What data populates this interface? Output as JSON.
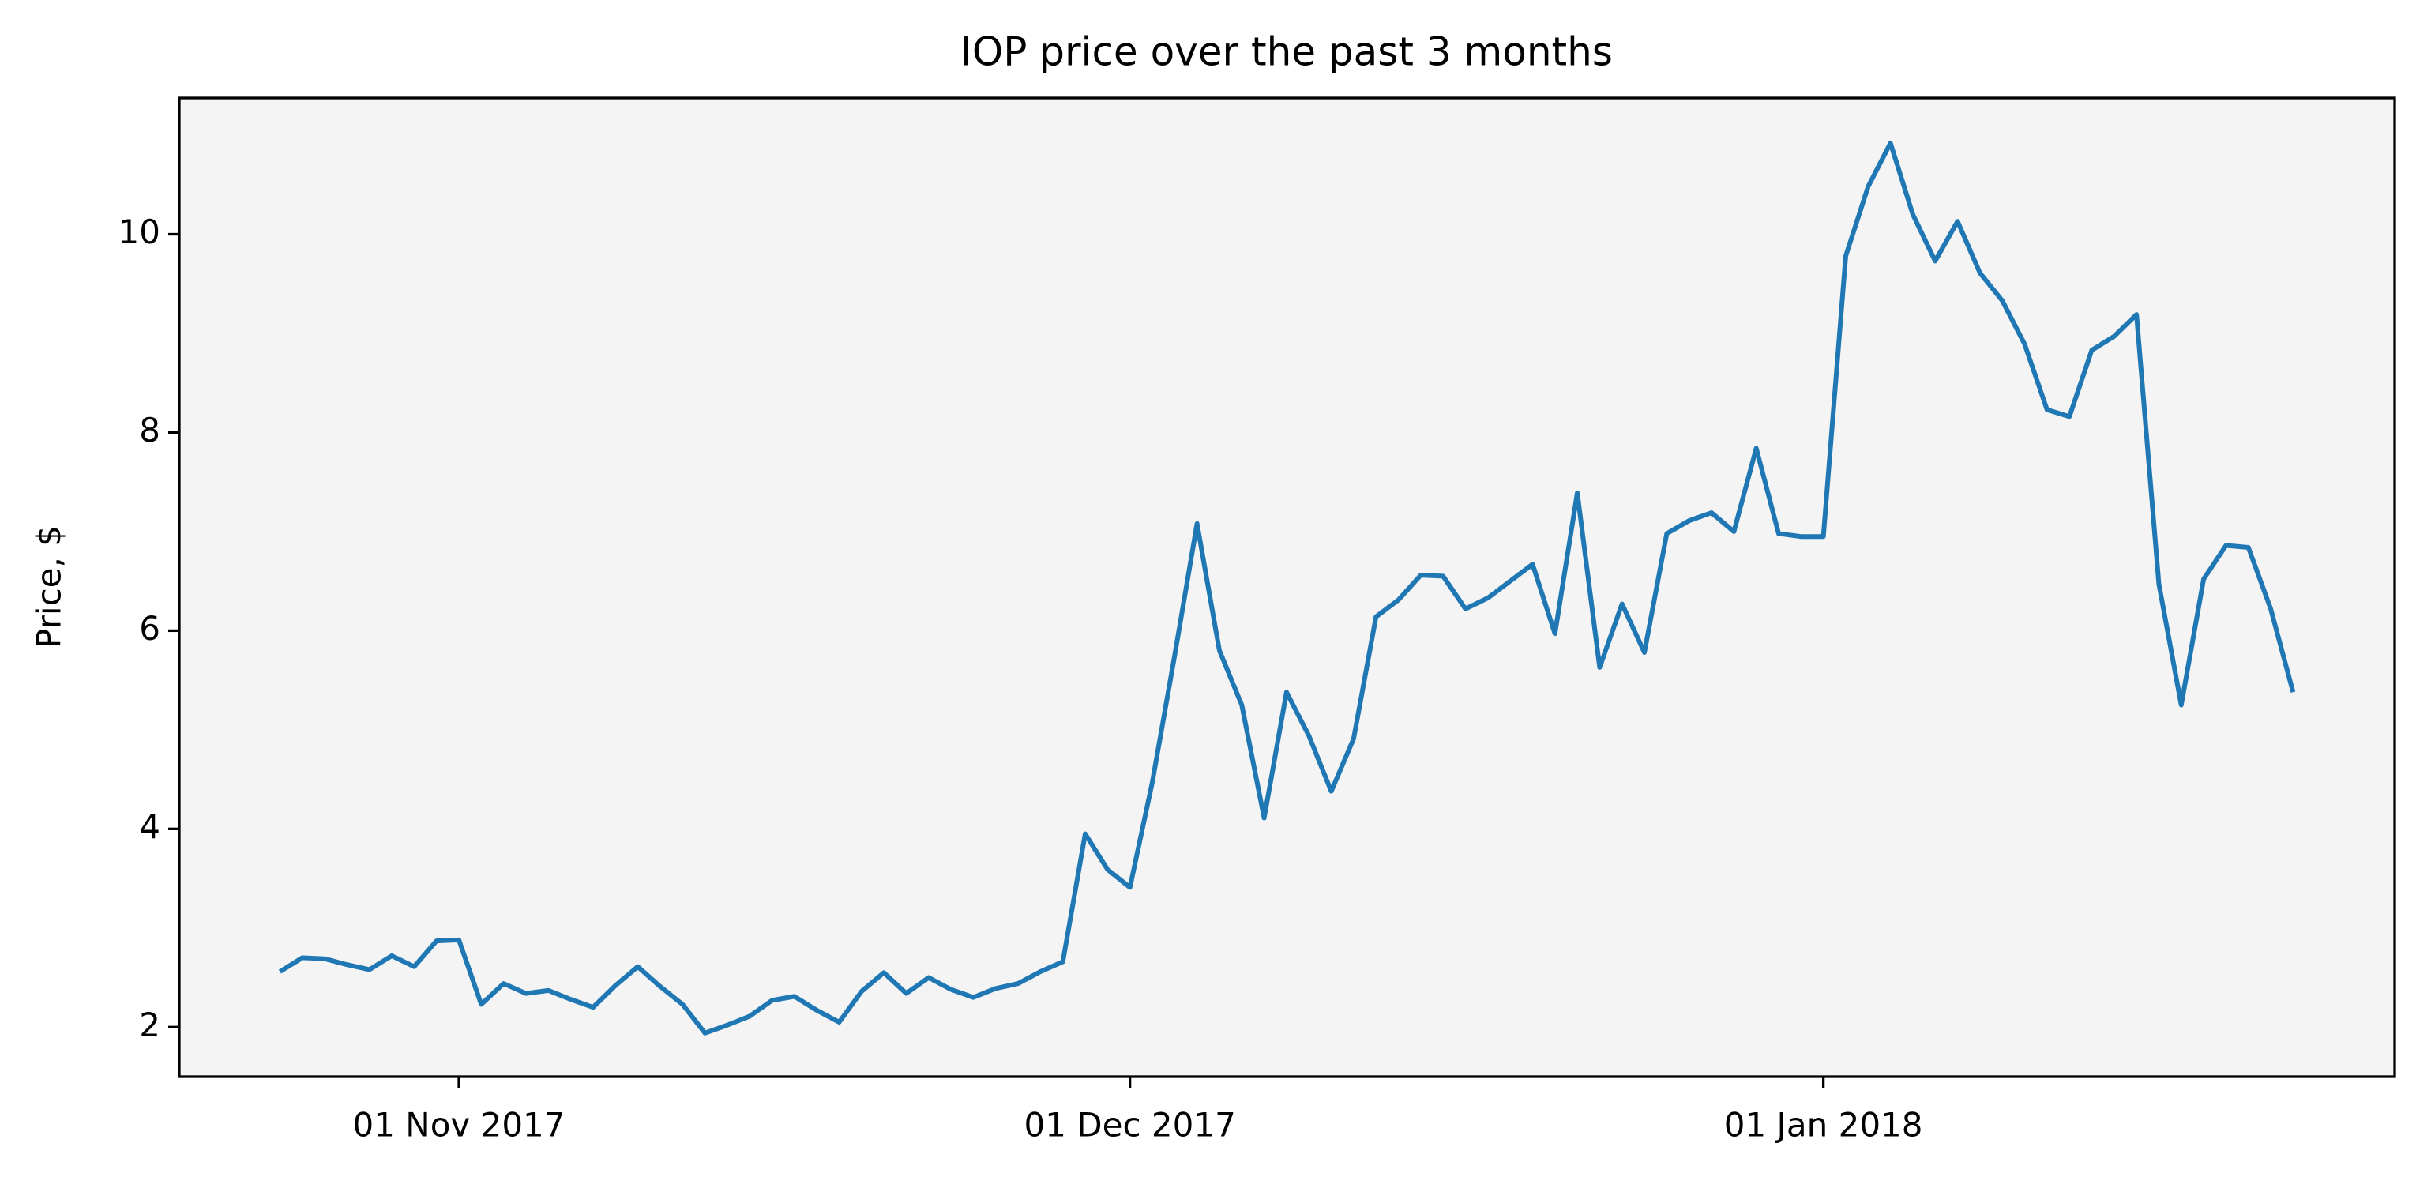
{
  "chart_data": {
    "type": "line",
    "title": "IOP price over the past 3 months",
    "ylabel": "Price, $",
    "x": [
      "2017-10-24",
      "2017-10-25",
      "2017-10-26",
      "2017-10-27",
      "2017-10-28",
      "2017-10-29",
      "2017-10-30",
      "2017-10-31",
      "2017-11-01",
      "2017-11-02",
      "2017-11-03",
      "2017-11-04",
      "2017-11-05",
      "2017-11-06",
      "2017-11-07",
      "2017-11-08",
      "2017-11-09",
      "2017-11-10",
      "2017-11-11",
      "2017-11-12",
      "2017-11-13",
      "2017-11-14",
      "2017-11-15",
      "2017-11-16",
      "2017-11-17",
      "2017-11-18",
      "2017-11-19",
      "2017-11-20",
      "2017-11-21",
      "2017-11-22",
      "2017-11-23",
      "2017-11-24",
      "2017-11-25",
      "2017-11-26",
      "2017-11-27",
      "2017-11-28",
      "2017-11-29",
      "2017-11-30",
      "2017-12-01",
      "2017-12-02",
      "2017-12-03",
      "2017-12-04",
      "2017-12-05",
      "2017-12-06",
      "2017-12-07",
      "2017-12-08",
      "2017-12-09",
      "2017-12-10",
      "2017-12-11",
      "2017-12-12",
      "2017-12-13",
      "2017-12-14",
      "2017-12-15",
      "2017-12-16",
      "2017-12-17",
      "2017-12-18",
      "2017-12-19",
      "2017-12-20",
      "2017-12-21",
      "2017-12-22",
      "2017-12-23",
      "2017-12-24",
      "2017-12-25",
      "2017-12-26",
      "2017-12-27",
      "2017-12-28",
      "2017-12-29",
      "2017-12-30",
      "2017-12-31",
      "2018-01-01",
      "2018-01-02",
      "2018-01-03",
      "2018-01-04",
      "2018-01-05",
      "2018-01-06",
      "2018-01-07",
      "2018-01-08",
      "2018-01-09",
      "2018-01-10",
      "2018-01-11",
      "2018-01-12",
      "2018-01-13",
      "2018-01-14",
      "2018-01-15",
      "2018-01-16",
      "2018-01-17",
      "2018-01-18",
      "2018-01-19",
      "2018-01-20",
      "2018-01-21",
      "2018-01-22"
    ],
    "values": [
      2.56,
      2.7,
      2.69,
      2.63,
      2.58,
      2.72,
      2.61,
      2.87,
      2.88,
      2.23,
      2.44,
      2.34,
      2.37,
      2.28,
      2.2,
      2.42,
      2.61,
      2.41,
      2.23,
      1.94,
      2.02,
      2.11,
      2.27,
      2.31,
      2.17,
      2.05,
      2.36,
      2.55,
      2.34,
      2.5,
      2.38,
      2.3,
      2.39,
      2.44,
      2.56,
      2.66,
      3.95,
      3.59,
      3.41,
      4.47,
      5.75,
      7.08,
      5.8,
      5.25,
      4.11,
      5.38,
      4.94,
      4.38,
      4.91,
      6.14,
      6.31,
      6.56,
      6.55,
      6.22,
      6.33,
      6.5,
      6.67,
      5.97,
      7.39,
      5.63,
      6.27,
      5.78,
      6.98,
      7.11,
      7.19,
      7.0,
      7.84,
      6.98,
      6.95,
      6.95,
      9.78,
      10.48,
      10.92,
      10.2,
      9.73,
      10.13,
      9.61,
      9.33,
      8.89,
      8.23,
      8.16,
      8.83,
      8.97,
      9.19,
      6.47,
      5.25,
      6.52,
      6.86,
      6.84,
      6.22,
      5.38
    ],
    "color": "#1f77b4",
    "xlim": [
      "2017-10-19T12:00:00Z",
      "2018-01-26T13:00:00Z"
    ],
    "xticks": [
      {
        "value": "2017-11-01",
        "label": "01 Nov 2017"
      },
      {
        "value": "2017-12-01",
        "label": "01 Dec 2017"
      },
      {
        "value": "2018-01-01",
        "label": "01 Jan 2018"
      }
    ],
    "ylim": [
      1.5,
      11.375
    ],
    "yticks": [
      2,
      4,
      6,
      8,
      10
    ],
    "grid": false,
    "background": "#f4f4f4"
  }
}
